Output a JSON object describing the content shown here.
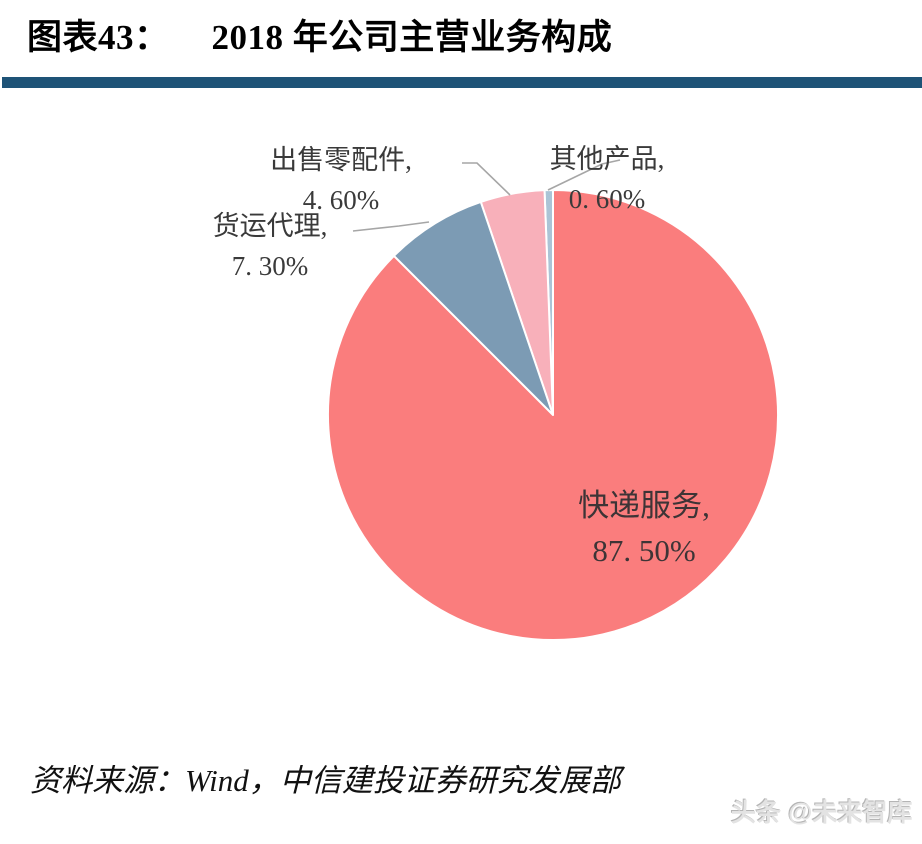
{
  "header": {
    "figure_label": "图表43：",
    "title": "2018 年公司主营业务构成",
    "accent_color": "#1E5377"
  },
  "chart_data": {
    "type": "pie",
    "title": "2018 年公司主营业务构成",
    "unit": "percent",
    "total": 100,
    "start_angle_deg": 0,
    "direction": "clockwise",
    "legend": "none",
    "label_style": "category-name + percent labels; leader lines point to small slices",
    "separator_color": "#ffffff",
    "leader_line_color": "#a6a6a6",
    "slices": [
      {
        "key": "express-service",
        "name": "快递服务",
        "value": 87.5,
        "display_name": "快递服务,",
        "display_pct": "87. 50%",
        "color": "#FA7D7D",
        "label_position": "inside"
      },
      {
        "key": "freight-forwarding",
        "name": "货运代理",
        "value": 7.3,
        "display_name": "货运代理,",
        "display_pct": "7. 30%",
        "color": "#7C9BB4",
        "label_position": "outside-left"
      },
      {
        "key": "spare-parts",
        "name": "出售零配件",
        "value": 4.6,
        "display_name": "出售零配件,",
        "display_pct": "4. 60%",
        "color": "#F8B0BA",
        "label_position": "outside-top-left"
      },
      {
        "key": "other-products",
        "name": "其他产品",
        "value": 0.6,
        "display_name": "其他产品,",
        "display_pct": "0. 60%",
        "color": "#ABC4D6",
        "label_position": "outside-top-right"
      }
    ]
  },
  "footer": {
    "source": "资料来源：Wind，中信建投证券研究发展部",
    "watermark": "头条 @未来智库"
  }
}
